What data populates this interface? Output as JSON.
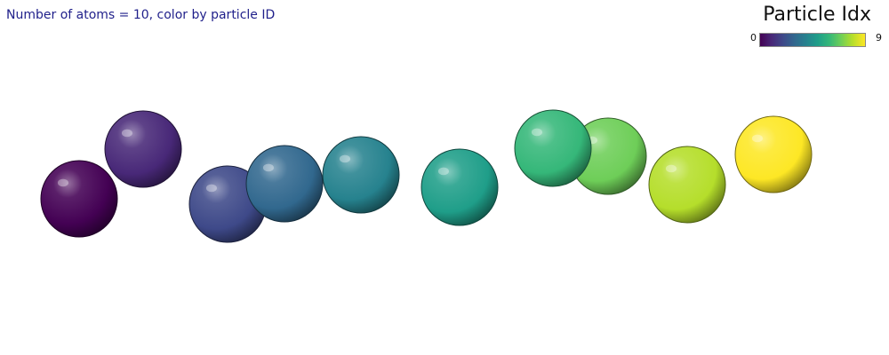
{
  "caption": "Number of atoms = 10, color by particle ID",
  "legend": {
    "title": "Particle Idx",
    "min_label": "0",
    "max_label": "9",
    "colormap": [
      "#440154",
      "#482878",
      "#3e4989",
      "#31688e",
      "#26828e",
      "#1f9e89",
      "#35b779",
      "#6ece58",
      "#b5de2b",
      "#fde725"
    ]
  },
  "particles": [
    {
      "id": 0,
      "color": "#440154"
    },
    {
      "id": 1,
      "color": "#482878"
    },
    {
      "id": 2,
      "color": "#3e4989"
    },
    {
      "id": 3,
      "color": "#31688e"
    },
    {
      "id": 4,
      "color": "#26828e"
    },
    {
      "id": 5,
      "color": "#1f9e89"
    },
    {
      "id": 6,
      "color": "#35b779"
    },
    {
      "id": 7,
      "color": "#6ece58"
    },
    {
      "id": 8,
      "color": "#b5de2b"
    },
    {
      "id": 9,
      "color": "#fde725"
    }
  ]
}
